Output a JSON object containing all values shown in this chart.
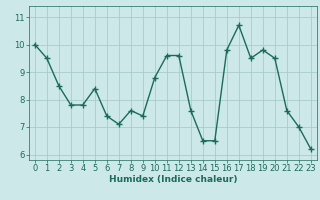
{
  "xlabel": "Humidex (Indice chaleur)",
  "x": [
    0,
    1,
    2,
    3,
    4,
    5,
    6,
    7,
    8,
    9,
    10,
    11,
    12,
    13,
    14,
    15,
    16,
    17,
    18,
    19,
    20,
    21,
    22,
    23
  ],
  "y": [
    10.0,
    9.5,
    8.5,
    7.8,
    7.8,
    8.4,
    7.4,
    7.1,
    7.6,
    7.4,
    8.8,
    9.6,
    9.6,
    7.6,
    6.5,
    6.5,
    9.8,
    10.7,
    9.5,
    9.8,
    9.5,
    7.6,
    7.0,
    6.2
  ],
  "line_color": "#1a6b5a",
  "marker": "+",
  "marker_size": 4,
  "bg_color": "#cde8e8",
  "grid_color": "#a8cccc",
  "tick_label_color": "#1a6b5a",
  "xlabel_color": "#1a6b5a",
  "xlim": [
    -0.5,
    23.5
  ],
  "ylim": [
    5.8,
    11.4
  ],
  "yticks": [
    6,
    7,
    8,
    9,
    10,
    11
  ],
  "xticks": [
    0,
    1,
    2,
    3,
    4,
    5,
    6,
    7,
    8,
    9,
    10,
    11,
    12,
    13,
    14,
    15,
    16,
    17,
    18,
    19,
    20,
    21,
    22,
    23
  ],
  "linewidth": 1.0,
  "marker_linewidth": 1.0,
  "axis_label_fontsize": 6.5,
  "tick_fontsize": 6.0
}
